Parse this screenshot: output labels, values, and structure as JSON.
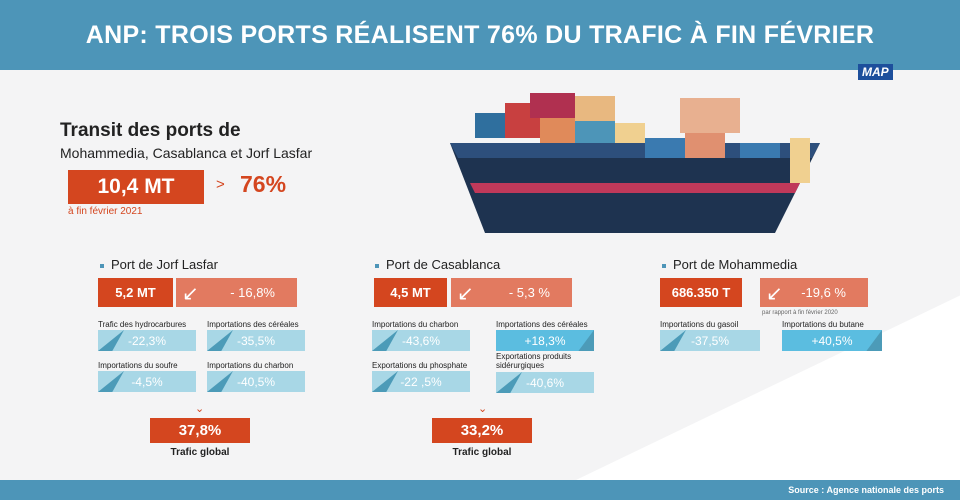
{
  "header": {
    "title": "ANP: TROIS PORTS RÉALISENT 76% DU TRAFIC À FIN FÉVRIER",
    "logo": "MAP"
  },
  "summary": {
    "title": "Transit des ports de",
    "subtitle": "Mohammedia, Casablanca et Jorf Lasfar",
    "total": "10,4 MT",
    "arrow": ">",
    "share": "76%",
    "date": "à fin février 2021"
  },
  "ports": [
    {
      "name": "Port de Jorf Lasfar",
      "value": "5,2 MT",
      "change": "- 16,8%",
      "metrics": [
        {
          "label": "Trafic des hydrocarbures",
          "value": "-22,3%",
          "dir": "down"
        },
        {
          "label": "Importations des céréales",
          "value": "-35,5%",
          "dir": "down"
        },
        {
          "label": "Importations du soufre",
          "value": "-4,5%",
          "dir": "down"
        },
        {
          "label": "Importations du charbon",
          "value": "-40,5%",
          "dir": "down"
        }
      ],
      "global": "37,8%",
      "global_label": "Trafic global"
    },
    {
      "name": "Port de Casablanca",
      "value": "4,5 MT",
      "change": "- 5,3 %",
      "metrics": [
        {
          "label": "Importations du charbon",
          "value": "-43,6%",
          "dir": "down"
        },
        {
          "label": "Importations des céréales",
          "value": "+18,3%",
          "dir": "up"
        },
        {
          "label": "Exportations du phosphate",
          "value": "-22 ,5%",
          "dir": "down"
        },
        {
          "label": "Exportations produits sidérurgiques",
          "value": "-40,6%",
          "dir": "down"
        }
      ],
      "global": "33,2%",
      "global_label": "Trafic global"
    },
    {
      "name": "Port de Mohammedia",
      "value": "686.350 T",
      "change": "-19,6 %",
      "note": "par rapport à fin février 2020",
      "metrics": [
        {
          "label": "Importations du gasoil",
          "value": "-37,5%",
          "dir": "down"
        },
        {
          "label": "Importations du butane",
          "value": "+40,5%",
          "dir": "up"
        }
      ]
    }
  ],
  "footer": {
    "source": "Source : Agence nationale des ports"
  },
  "colors": {
    "header": "#4d95b8",
    "accent": "#d4461f",
    "change": "#e27a60",
    "metric": "#a8d7e6",
    "metric_positive": "#5bbde0"
  }
}
